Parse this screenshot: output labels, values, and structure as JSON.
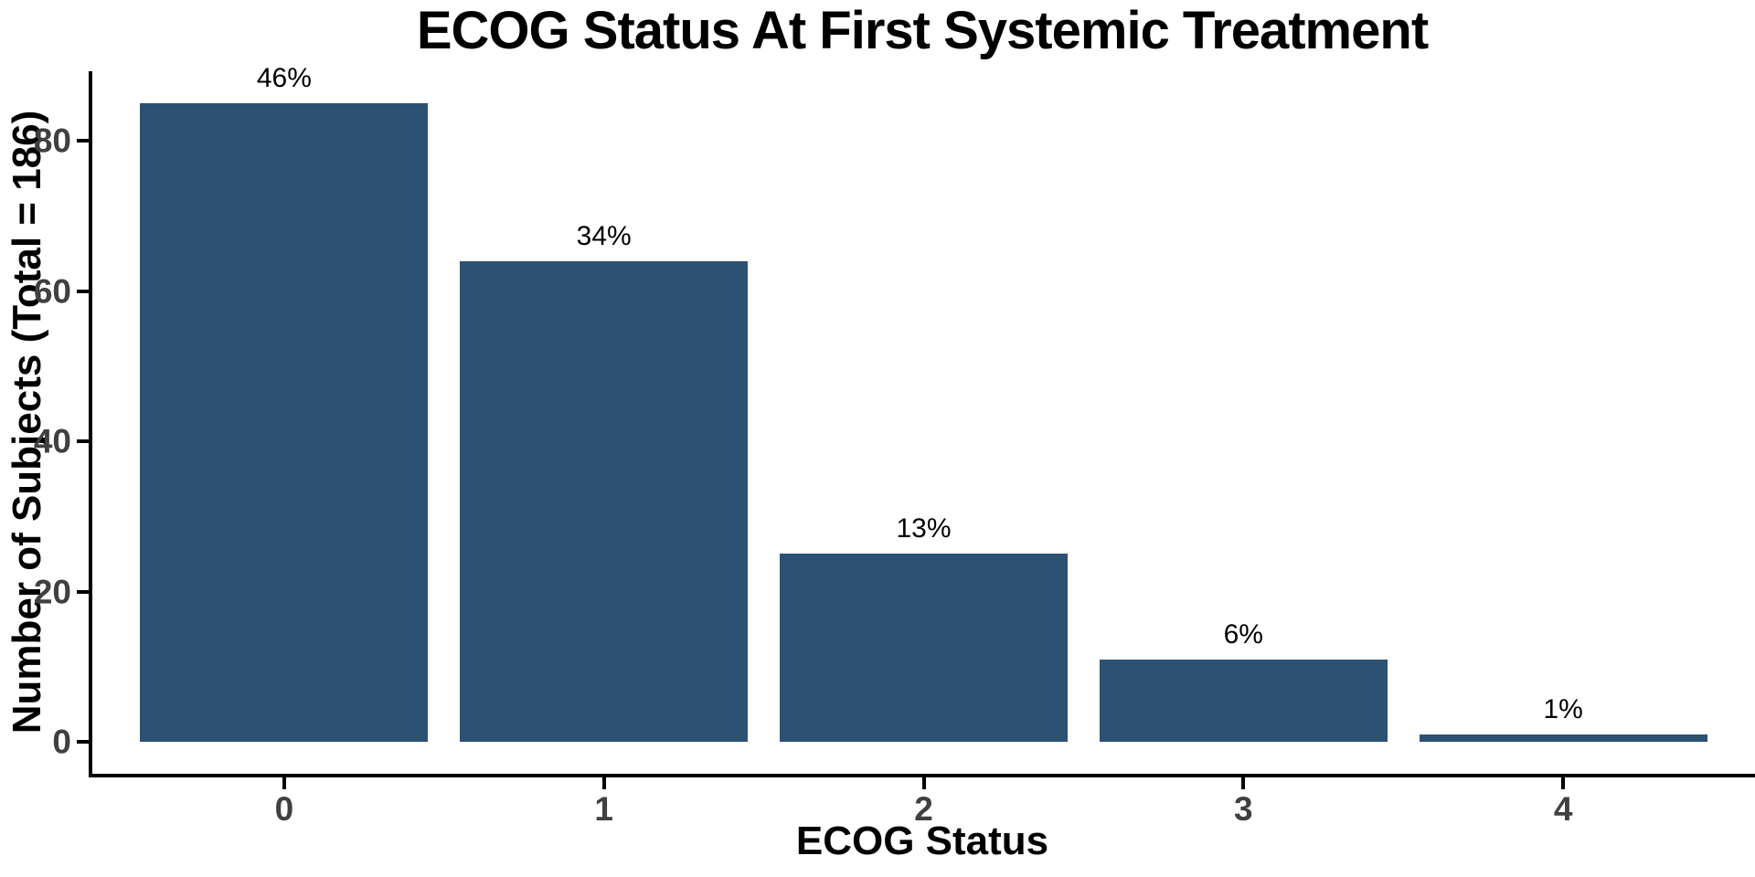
{
  "chart_data": {
    "type": "bar",
    "title": "ECOG Status At First Systemic Treatment",
    "xlabel": "ECOG Status",
    "ylabel": "Number of Subjects (Total = 186)",
    "total_subjects": 186,
    "categories": [
      "0",
      "1",
      "2",
      "3",
      "4"
    ],
    "values": [
      85,
      64,
      25,
      11,
      1
    ],
    "bar_labels": [
      "46%",
      "34%",
      "13%",
      "6%",
      "1%"
    ],
    "yticks": [
      0,
      20,
      40,
      60,
      80
    ],
    "ylim": [
      0,
      85
    ],
    "grid": "off",
    "legend": "none",
    "colors": {
      "bar_fill": "#2C5173",
      "axis_text": "#404040",
      "axis_line": "#000000",
      "title_text": "#000000",
      "value_label_text": "#000000",
      "background": "#FFFFFF"
    }
  }
}
